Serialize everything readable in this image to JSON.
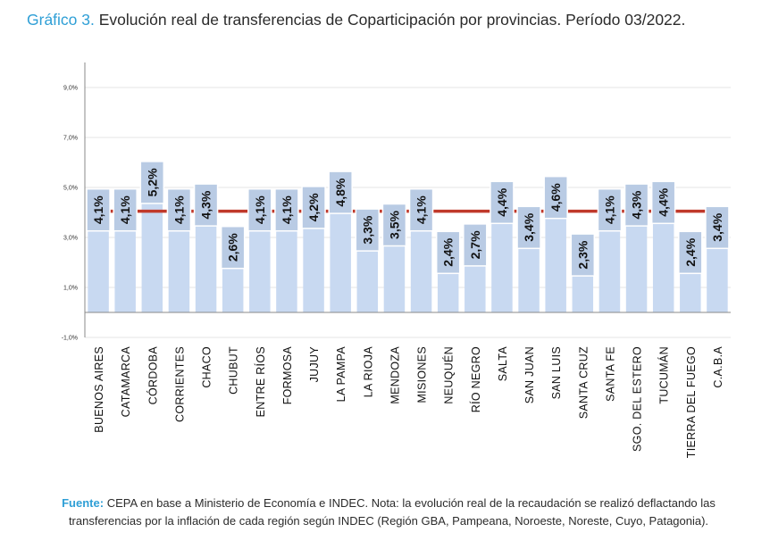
{
  "header": {
    "prefix": "Gráfico 3.",
    "text": "Evolución real de transferencias de Coparticipación por provincias. Período 03/2022."
  },
  "chart_data": {
    "type": "bar",
    "categories": [
      "BUENOS AIRES",
      "CATAMARCA",
      "CÓRDOBA",
      "CORRIENTES",
      "CHACO",
      "CHUBUT",
      "ENTRE RÍOS",
      "FORMOSA",
      "JUJUY",
      "LA PAMPA",
      "LA RIOJA",
      "MENDOZA",
      "MISIONES",
      "NEUQUÉN",
      "RÍO NEGRO",
      "SALTA",
      "SAN JUAN",
      "SAN LUIS",
      "SANTA CRUZ",
      "SANTA FE",
      "SGO. DEL ESTERO",
      "TUCUMÁN",
      "TIERRA DEL FUEGO",
      "C.A.B.A"
    ],
    "values": [
      4.1,
      4.1,
      5.2,
      4.1,
      4.3,
      2.6,
      4.1,
      4.1,
      4.2,
      4.8,
      3.3,
      3.5,
      4.1,
      2.4,
      2.7,
      4.4,
      3.4,
      4.6,
      2.3,
      4.1,
      4.3,
      4.4,
      2.4,
      3.4
    ],
    "data_labels": [
      "4,1%",
      "4,1%",
      "5,2%",
      "4,1%",
      "4,3%",
      "2,6%",
      "4,1%",
      "4,1%",
      "4,2%",
      "4,8%",
      "3,3%",
      "3,5%",
      "4,1%",
      "2,4%",
      "2,7%",
      "4,4%",
      "3,4%",
      "4,6%",
      "2,3%",
      "4,1%",
      "4,3%",
      "4,4%",
      "2,4%",
      "3,4%"
    ],
    "reference_line": 4.05,
    "yticks": [
      -1,
      1,
      3,
      5,
      7,
      9
    ],
    "ytick_labels": [
      "-1,0%",
      "1,0%",
      "3,0%",
      "5,0%",
      "7,0%",
      "9,0%"
    ],
    "ylim": [
      -1,
      10
    ],
    "grid": true,
    "colors": {
      "bar": "#c8d9f1",
      "label_box": "#b9cbe4",
      "label_border": "#ffffff",
      "reference_line": "#c0392b",
      "grid": "#e6e6e6",
      "axis": "#888888"
    }
  },
  "footnote": {
    "prefix": "Fuente:",
    "text": "CEPA en base a Ministerio de Economía e INDEC. Nota: la evolución real de la recaudación se realizó deflactando las transferencias por la inflación de cada región según INDEC (Región GBA, Pampeana, Noroeste, Noreste, Cuyo, Patagonia)."
  }
}
